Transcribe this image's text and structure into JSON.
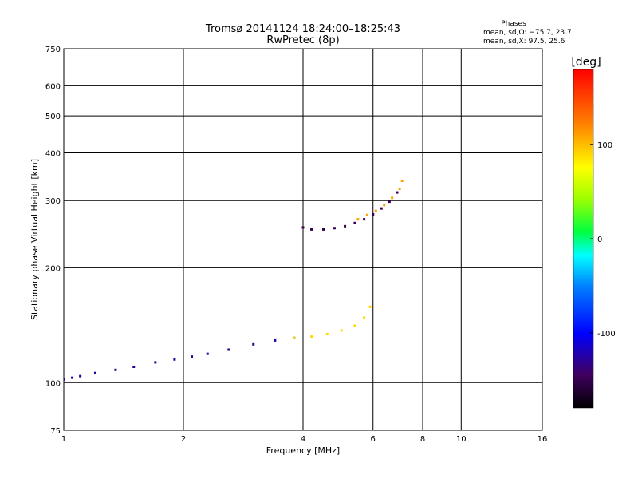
{
  "chart_data": {
    "type": "scatter",
    "title": "Tromsø 20141124 18:24:00–18:25:43",
    "subtitle": "RwPretec (8p)",
    "xlabel": "Frequency [MHz]",
    "ylabel": "Stationary phase Virtual Height [km]",
    "x_scale": "log",
    "y_scale": "log",
    "xlim": [
      1,
      16
    ],
    "ylim": [
      75,
      750
    ],
    "x_ticks": [
      1,
      2,
      4,
      6,
      8,
      10,
      16
    ],
    "y_ticks": [
      75,
      100,
      200,
      300,
      400,
      500,
      600,
      750
    ],
    "x_gridlines": [
      2,
      4,
      6,
      8,
      10
    ],
    "y_gridlines": [
      100,
      200,
      300,
      400,
      500,
      600
    ],
    "grid": true,
    "stats": {
      "heading": "Phases",
      "o_mode": "mean, sd,O: −75.7, 23.7",
      "x_mode": "mean, sd,X:  97.5, 25.6"
    },
    "colorbar": {
      "label": "[deg]",
      "range": [
        -180,
        180
      ],
      "ticks": [
        100,
        0,
        -100
      ],
      "placement": "right"
    },
    "traces": [
      {
        "name": "",
        "x": [
          1.0,
          1.05,
          1.1,
          1.2,
          1.35,
          1.5,
          1.7,
          1.9,
          2.1,
          2.3,
          2.6,
          3.0,
          3.4,
          3.8
        ],
        "y": [
          102,
          103,
          104,
          106,
          108,
          110,
          113,
          115,
          117,
          119,
          122,
          126,
          129,
          131
        ],
        "phase": -130
      },
      {
        "name": "",
        "x": [
          3.8,
          4.2,
          4.6,
          5.0,
          5.4,
          5.7,
          5.9
        ],
        "y": [
          131,
          132,
          134,
          137,
          141,
          148,
          158
        ],
        "phase": 90
      },
      {
        "name": "",
        "x": [
          4.0,
          4.2,
          4.5,
          4.8,
          5.1,
          5.4,
          5.7,
          6.0,
          6.3,
          6.6,
          6.9
        ],
        "y": [
          255,
          252,
          252,
          254,
          257,
          262,
          268,
          276,
          286,
          298,
          315
        ],
        "phase": -150
      },
      {
        "name": "",
        "x": [
          5.5,
          5.8,
          6.1,
          6.4,
          6.7,
          7.0,
          7.1
        ],
        "y": [
          268,
          275,
          282,
          292,
          305,
          322,
          338
        ],
        "phase": 110
      }
    ]
  }
}
